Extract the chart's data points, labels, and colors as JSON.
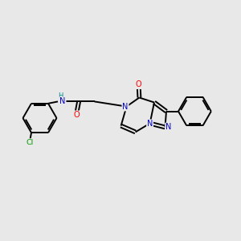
{
  "background_color": "#e8e8e8",
  "bond_color": "#000000",
  "atom_colors": {
    "N": "#0000cc",
    "O": "#ff0000",
    "Cl": "#009900",
    "H": "#008888"
  },
  "figsize": [
    3.0,
    3.0
  ],
  "dpi": 100
}
